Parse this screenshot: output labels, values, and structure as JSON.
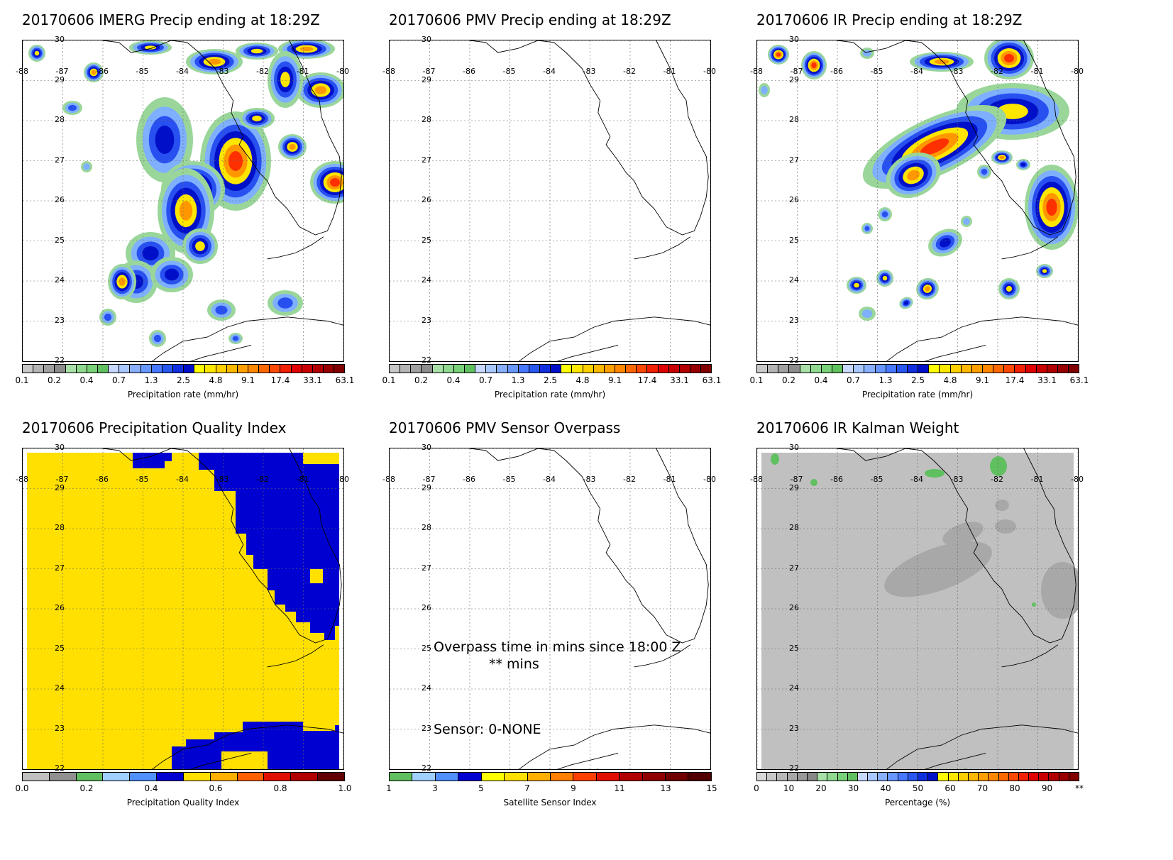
{
  "panels": [
    {
      "title": "20170606 IMERG Precip ending at 18:29Z",
      "kind": "precip",
      "colorbar": "precip"
    },
    {
      "title": "20170606 PMV Precip ending at 18:29Z",
      "kind": "empty",
      "colorbar": "precip"
    },
    {
      "title": "20170606 IR Precip ending at 18:29Z",
      "kind": "ir",
      "colorbar": "precip"
    },
    {
      "title": "20170606 Precipitation Quality Index",
      "kind": "quality",
      "colorbar": "quality"
    },
    {
      "title": "20170606 PMV Sensor Overpass",
      "kind": "overpass",
      "colorbar": "sensor"
    },
    {
      "title": "20170606 IR Kalman Weight",
      "kind": "kalman",
      "colorbar": "percent"
    }
  ],
  "axes": {
    "lat_labels": [
      "30",
      "29",
      "28",
      "27",
      "26",
      "25",
      "24",
      "23",
      "22"
    ],
    "lon_labels": [
      "-88",
      "-87",
      "-86",
      "-85",
      "-84",
      "-83",
      "-82",
      "-81",
      "-80"
    ]
  },
  "colorbars": {
    "precip": {
      "label": "Precipitation rate (mm/hr)",
      "ticks": [
        "0.1",
        "0.2",
        "0.4",
        "0.7",
        "1.3",
        "2.5",
        "4.8",
        "9.1",
        "17.4",
        "33.1",
        "63.1"
      ],
      "colors": [
        "#c8c8c8",
        "#b4b4b4",
        "#a0a0a0",
        "#8c8c8c",
        "#a8e0a8",
        "#90d890",
        "#78d078",
        "#60c060",
        "#c8d8ff",
        "#a8c8ff",
        "#88b0ff",
        "#6898ff",
        "#4878ff",
        "#2858f0",
        "#1030e0",
        "#0010c8",
        "#ffff00",
        "#ffe800",
        "#ffd000",
        "#ffb800",
        "#ffa000",
        "#ff8800",
        "#ff6800",
        "#ff4800",
        "#f02000",
        "#e00000",
        "#c80000",
        "#b00000",
        "#980000",
        "#800000"
      ]
    },
    "quality": {
      "label": "Precipitation Quality Index",
      "ticks": [
        "0.0",
        "0.2",
        "0.4",
        "0.6",
        "0.8",
        "1.0"
      ],
      "colors": [
        "#c0c0c0",
        "#909090",
        "#60c060",
        "#a0d0ff",
        "#5090ff",
        "#0000d0",
        "#ffe000",
        "#ffb000",
        "#ff6000",
        "#e01000",
        "#b00000",
        "#600000"
      ]
    },
    "sensor": {
      "label": "Satellite Sensor Index",
      "ticks": [
        "1",
        "3",
        "5",
        "7",
        "9",
        "11",
        "13",
        "15"
      ],
      "colors": [
        "#60c060",
        "#a0d0ff",
        "#5090ff",
        "#0000d0",
        "#ffff00",
        "#ffe000",
        "#ffb000",
        "#ff8000",
        "#ff4000",
        "#e01000",
        "#b00000",
        "#900000",
        "#700000",
        "#500000"
      ]
    },
    "percent": {
      "label": "Percentage (%)",
      "ticks": [
        "0",
        "10",
        "20",
        "30",
        "40",
        "50",
        "60",
        "70",
        "80",
        "90",
        "**"
      ],
      "colors": [
        "#d8d8d8",
        "#c8c8c8",
        "#b8b8b8",
        "#a8a8a8",
        "#989898",
        "#888888",
        "#a8e0a8",
        "#90d890",
        "#78d078",
        "#60c060",
        "#c8d8ff",
        "#a8c8ff",
        "#88b0ff",
        "#6898ff",
        "#4878ff",
        "#2858f0",
        "#1030e0",
        "#0010c8",
        "#ffff00",
        "#ffe800",
        "#ffd000",
        "#ffb800",
        "#ffa000",
        "#ff8800",
        "#ff6800",
        "#ff4800",
        "#f02000",
        "#e00000",
        "#c80000",
        "#b00000",
        "#980000",
        "#800000"
      ]
    }
  },
  "overpass": {
    "line1": "Overpass time in mins since 18:00 Z",
    "line2": "** mins",
    "sensor": "Sensor:   0-NONE"
  }
}
